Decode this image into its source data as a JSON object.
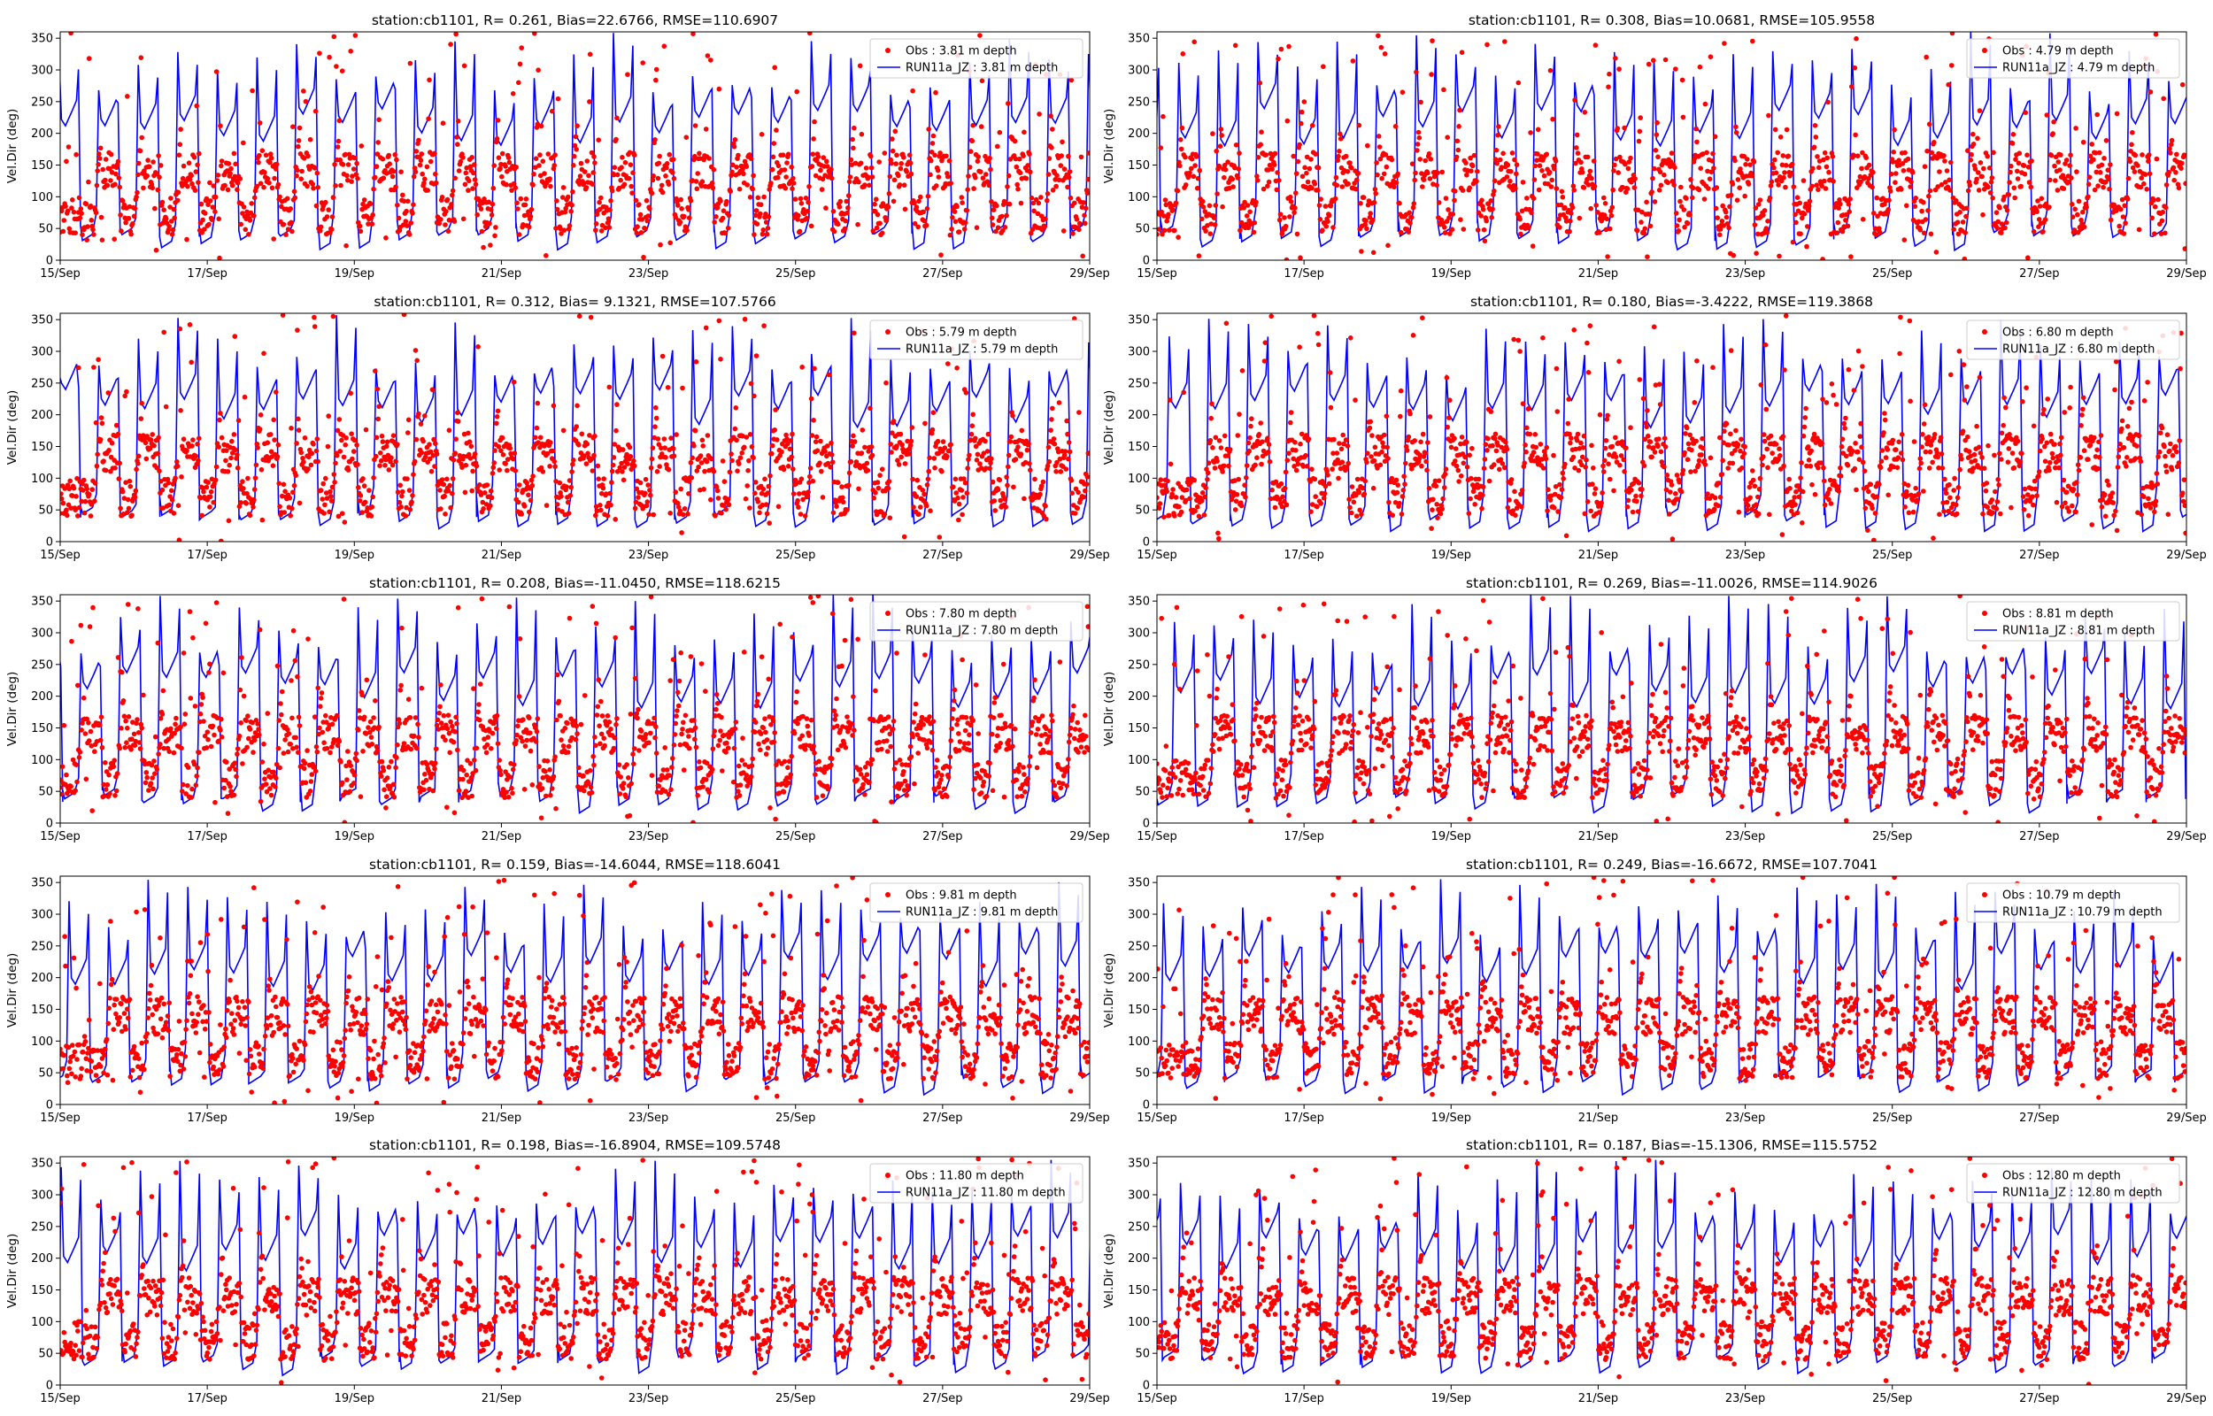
{
  "chart_data": {
    "type": "scatter",
    "layout": {
      "rows": 5,
      "cols": 2
    },
    "x_ticks": [
      "15/Sep",
      "17/Sep",
      "19/Sep",
      "21/Sep",
      "23/Sep",
      "25/Sep",
      "27/Sep",
      "29/Sep"
    ],
    "x_range_days": [
      0,
      14
    ],
    "y_ticks": [
      0,
      50,
      100,
      150,
      200,
      250,
      300,
      350
    ],
    "ylim": [
      0,
      360
    ],
    "ylabel": "Vel.Dir (deg)",
    "colors": {
      "obs": "#ff0000",
      "model": "#0000ff",
      "axis": "#000000"
    },
    "panels": [
      {
        "title": "station:cb1101, R= 0.261, Bias=22.6766, RMSE=110.6907",
        "obs_label": "Obs : 3.81 m depth",
        "model_label": "RUN11a_JZ : 3.81 m depth",
        "seed": 11
      },
      {
        "title": "station:cb1101, R= 0.308, Bias=10.0681, RMSE=105.9558",
        "obs_label": "Obs : 4.79 m depth",
        "model_label": "RUN11a_JZ : 4.79 m depth",
        "seed": 23
      },
      {
        "title": "station:cb1101, R= 0.312, Bias= 9.1321, RMSE=107.5766",
        "obs_label": "Obs : 5.79 m depth",
        "model_label": "RUN11a_JZ : 5.79 m depth",
        "seed": 37
      },
      {
        "title": "station:cb1101, R= 0.180, Bias=-3.4222, RMSE=119.3868",
        "obs_label": "Obs : 6.80 m depth",
        "model_label": "RUN11a_JZ : 6.80 m depth",
        "seed": 41
      },
      {
        "title": "station:cb1101, R= 0.208, Bias=-11.0450, RMSE=118.6215",
        "obs_label": "Obs : 7.80 m depth",
        "model_label": "RUN11a_JZ : 7.80 m depth",
        "seed": 53
      },
      {
        "title": "station:cb1101, R= 0.269, Bias=-11.0026, RMSE=114.9026",
        "obs_label": "Obs : 8.81 m depth",
        "model_label": "RUN11a_JZ : 8.81 m depth",
        "seed": 67
      },
      {
        "title": "station:cb1101, R= 0.159, Bias=-14.6044, RMSE=118.6041",
        "obs_label": "Obs : 9.81 m depth",
        "model_label": "RUN11a_JZ : 9.81 m depth",
        "seed": 71
      },
      {
        "title": "station:cb1101, R= 0.249, Bias=-16.6672, RMSE=107.7041",
        "obs_label": "Obs : 10.79 m depth",
        "model_label": "RUN11a_JZ : 10.79 m depth",
        "seed": 83
      },
      {
        "title": "station:cb1101, R= 0.198, Bias=-16.8904, RMSE=109.5748",
        "obs_label": "Obs : 11.80 m depth",
        "model_label": "RUN11a_JZ : 11.80 m depth",
        "seed": 97
      },
      {
        "title": "station:cb1101, R= 0.187, Bias=-15.1306, RMSE=115.5752",
        "obs_label": "Obs : 12.80 m depth",
        "model_label": "RUN11a_JZ : 12.80 m depth",
        "seed": 101
      }
    ]
  }
}
